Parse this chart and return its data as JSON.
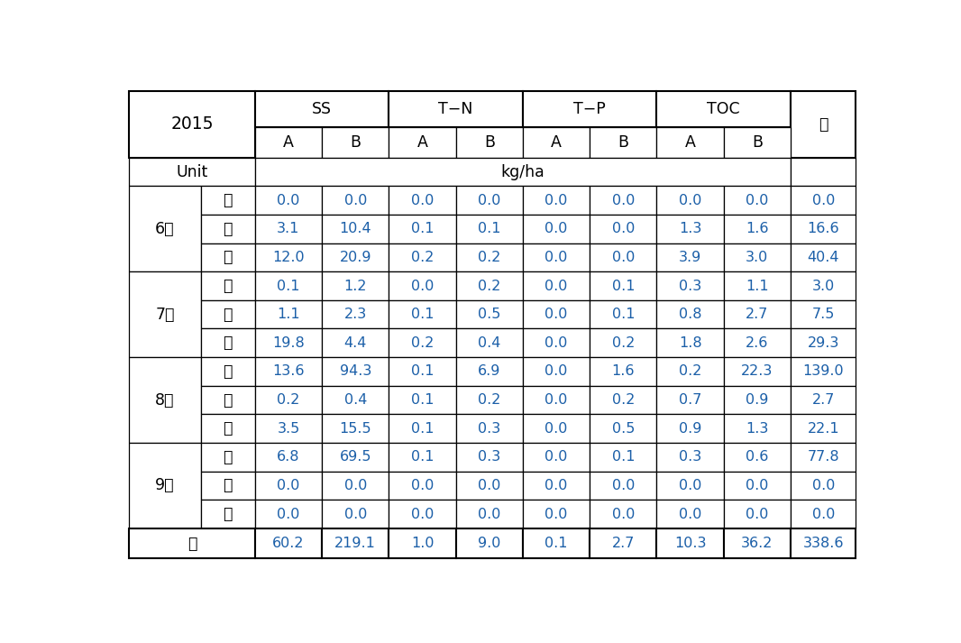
{
  "title_year": "2015",
  "headers_top": [
    "SS",
    "T−N",
    "T−P",
    "TOC"
  ],
  "headers_sub": [
    "A",
    "B"
  ],
  "unit_label": "Unit",
  "unit_value": "kg/ha",
  "months": [
    "6월",
    "7월",
    "8월",
    "9월"
  ],
  "periods": [
    "싸",
    "중",
    "말"
  ],
  "total_label": "계",
  "data": [
    [
      "0.0",
      "0.0",
      "0.0",
      "0.0",
      "0.0",
      "0.0",
      "0.0",
      "0.0",
      "0.0"
    ],
    [
      "3.1",
      "10.4",
      "0.1",
      "0.1",
      "0.0",
      "0.0",
      "1.3",
      "1.6",
      "16.6"
    ],
    [
      "12.0",
      "20.9",
      "0.2",
      "0.2",
      "0.0",
      "0.0",
      "3.9",
      "3.0",
      "40.4"
    ],
    [
      "0.1",
      "1.2",
      "0.0",
      "0.2",
      "0.0",
      "0.1",
      "0.3",
      "1.1",
      "3.0"
    ],
    [
      "1.1",
      "2.3",
      "0.1",
      "0.5",
      "0.0",
      "0.1",
      "0.8",
      "2.7",
      "7.5"
    ],
    [
      "19.8",
      "4.4",
      "0.2",
      "0.4",
      "0.0",
      "0.2",
      "1.8",
      "2.6",
      "29.3"
    ],
    [
      "13.6",
      "94.3",
      "0.1",
      "6.9",
      "0.0",
      "1.6",
      "0.2",
      "22.3",
      "139.0"
    ],
    [
      "0.2",
      "0.4",
      "0.1",
      "0.2",
      "0.0",
      "0.2",
      "0.7",
      "0.9",
      "2.7"
    ],
    [
      "3.5",
      "15.5",
      "0.1",
      "0.3",
      "0.0",
      "0.5",
      "0.9",
      "1.3",
      "22.1"
    ],
    [
      "6.8",
      "69.5",
      "0.1",
      "0.3",
      "0.0",
      "0.1",
      "0.3",
      "0.6",
      "77.8"
    ],
    [
      "0.0",
      "0.0",
      "0.0",
      "0.0",
      "0.0",
      "0.0",
      "0.0",
      "0.0",
      "0.0"
    ],
    [
      "0.0",
      "0.0",
      "0.0",
      "0.0",
      "0.0",
      "0.0",
      "0.0",
      "0.0",
      "0.0"
    ]
  ],
  "totals": [
    "60.2",
    "219.1",
    "1.0",
    "9.0",
    "0.1",
    "2.7",
    "10.3",
    "36.2",
    "338.6"
  ],
  "text_color_data": "#1B5FA8",
  "text_color_header": "#000000",
  "bg_color": "#FFFFFF",
  "border_color": "#000000",
  "font_size_data": 11.5,
  "font_size_header": 12.5,
  "font_size_title": 13.5
}
